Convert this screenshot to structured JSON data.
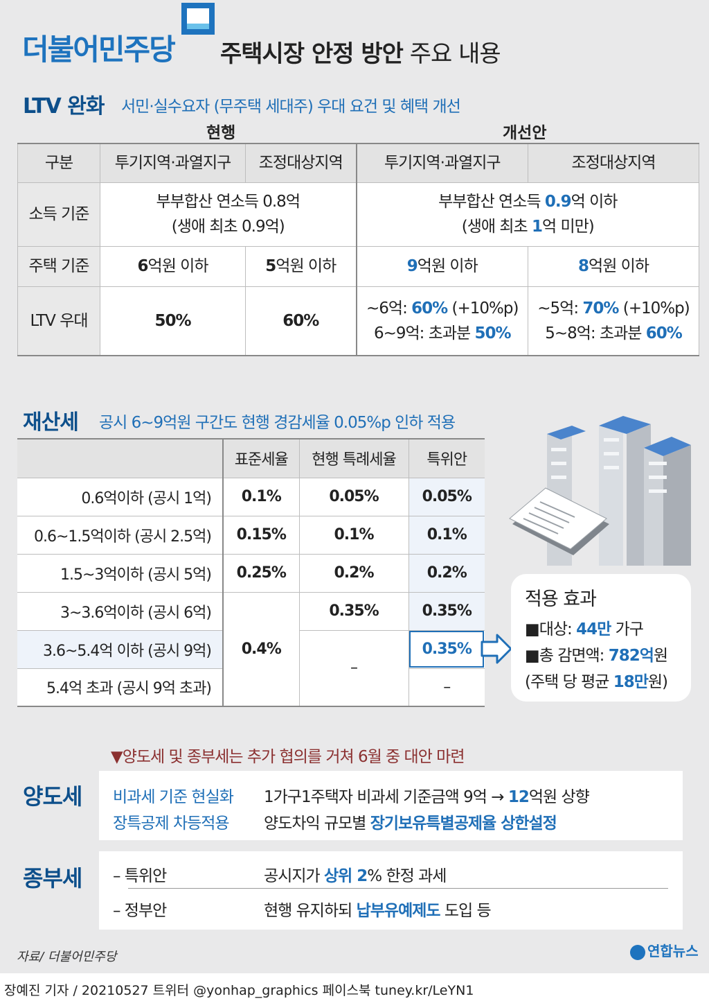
{
  "header": {
    "party": "더불어민주당",
    "title_bold": "주택시장 안정 방안",
    "title_rest": " 주요 내용"
  },
  "ltv": {
    "title": "LTV 완화",
    "subtitle": "서민·실수요자 (무주택 세대주) 우대 요건 및 혜택 개선",
    "current_label": "현행",
    "proposal_label": "개선안",
    "headers": [
      "구분",
      "투기지역·과열지구",
      "조정대상지역",
      "투기지역·과열지구",
      "조정대상지역"
    ],
    "rows": {
      "income": {
        "label": "소득 기준",
        "current_l1": "부부합산 연소득 0.8억",
        "current_l2": "(생애 최초 0.9억)",
        "proposal_l1a": "부부합산 연소득 ",
        "proposal_l1b": "0.9",
        "proposal_l1c": "억 이하",
        "proposal_l2a": "(생애 최초 ",
        "proposal_l2b": "1",
        "proposal_l2c": "억 미만)"
      },
      "house": {
        "label": "주택 기준",
        "cur1a": "6",
        "cur1b": "억원 이하",
        "cur2a": "5",
        "cur2b": "억원 이하",
        "pro1a": "9",
        "pro1b": "억원 이하",
        "pro2a": "8",
        "pro2b": "억원 이하"
      },
      "ltv": {
        "label": "LTV 우대",
        "cur1": "50%",
        "cur2": "60%",
        "pro1_l1a": "~6억: ",
        "pro1_l1b": "60%",
        "pro1_l1c": " (+10%p)",
        "pro1_l2a": "6~9억: 초과분 ",
        "pro1_l2b": "50%",
        "pro2_l1a": "~5억: ",
        "pro2_l1b": "70%",
        "pro2_l1c": " (+10%p)",
        "pro2_l2a": "5~8억: 초과분 ",
        "pro2_l2b": "60%"
      }
    }
  },
  "property": {
    "title": "재산세",
    "subtitle": "공시 6~9억원 구간도 현행 경감세율 0.05%p 인하 적용",
    "headers": [
      "",
      "표준세율",
      "현행 특례세율",
      "특위안"
    ],
    "rows": [
      {
        "label": "0.6억이하 (공시 1억)",
        "std": "0.1%",
        "cur": "0.05%",
        "pro": "0.05%"
      },
      {
        "label": "0.6~1.5억이하 (공시 2.5억)",
        "std": "0.15%",
        "cur": "0.1%",
        "pro": "0.1%"
      },
      {
        "label": "1.5~3억이하 (공시 5억)",
        "std": "0.25%",
        "cur": "0.2%",
        "pro": "0.2%"
      },
      {
        "label": "3~3.6억이하 (공시 6억)",
        "std": "0.4%",
        "cur": "0.35%",
        "pro": "0.35%"
      },
      {
        "label": "3.6~5.4억 이하 (공시 9억)",
        "std": "",
        "cur": "–",
        "pro": "0.35%"
      },
      {
        "label": "5.4억 초과 (공시 9억 초과)",
        "std": "",
        "cur": "",
        "pro": "–"
      }
    ],
    "effect": {
      "title": "적용 효과",
      "l1a": "■대상: ",
      "l1b": "44만",
      "l1c": " 가구",
      "l2a": "■총 감면액: ",
      "l2b": "782억",
      "l2c": "원",
      "l3a": "(주택 당 평균 ",
      "l3b": "18만",
      "l3c": "원)"
    }
  },
  "notice": "▼양도세 및 종부세는 추가 협의를 거쳐 6월 중 대안 마련",
  "capital_gains": {
    "title": "양도세",
    "r1_label": "비과세 기준 현실화",
    "r1_a": "1가구1주택자 비과세 기준금액 9억 → ",
    "r1_b": "12",
    "r1_c": "억원 상향",
    "r2_label": "장특공제 차등적용",
    "r2_a": "양도차익 규모별 ",
    "r2_b": "장기보유특별공제율 상한설정"
  },
  "comprehensive": {
    "title": "종부세",
    "r1_label": "– 특위안",
    "r1_a": "공시지가 ",
    "r1_b": "상위 2",
    "r1_c": "% 한정 과세",
    "r2_label": "– 정부안",
    "r2_a": "현행 유지하되 ",
    "r2_b": "납부유예제도",
    "r2_c": " 도입 등"
  },
  "footer": {
    "source": "자료/ 더불어민주당",
    "logo": "연합뉴스",
    "credit": "장예진 기자 / 20210527 트위터 @yonhap_graphics  페이스북 tuney.kr/LeYN1"
  },
  "colors": {
    "brand": "#1e73be",
    "navy": "#0d4f8b",
    "accent_red": "#8b3030"
  }
}
